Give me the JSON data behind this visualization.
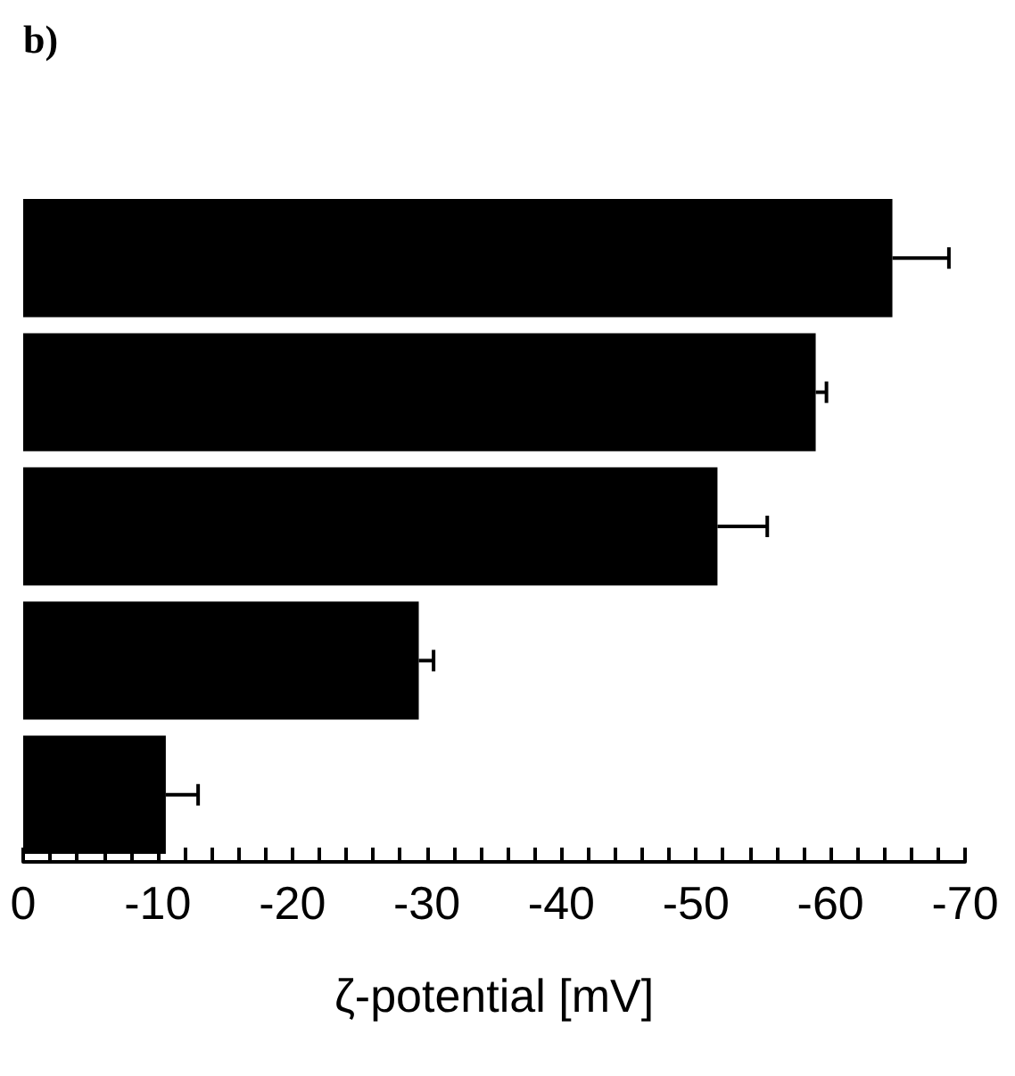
{
  "chart_data": {
    "type": "bar",
    "orientation": "horizontal",
    "title": "b)",
    "xlabel": "ζ-potential [mV]",
    "categories": [
      null,
      null,
      null,
      null,
      null
    ],
    "values": [
      -64.6,
      -58.9,
      -51.6,
      -29.4,
      -10.6
    ],
    "errors": [
      [
        -68.8,
        -64.6
      ],
      [
        -59.7,
        -58.9
      ],
      [
        -55.3,
        -51.6
      ],
      [
        -30.5,
        -29.4
      ],
      [
        -13,
        -10.6
      ]
    ],
    "color": "#000000",
    "xlim": [
      0,
      -70
    ],
    "xticks": [
      0,
      {
        "value": -2,
        "label": null
      },
      {
        "value": -4,
        "label": null
      },
      {
        "value": -6,
        "label": null
      },
      {
        "value": -8,
        "label": null
      },
      -10,
      {
        "value": -12,
        "label": null
      },
      {
        "value": -14,
        "label": null
      },
      {
        "value": -16,
        "label": null
      },
      {
        "value": -18,
        "label": null
      },
      -20,
      {
        "value": -22,
        "label": null
      },
      {
        "value": -24,
        "label": null
      },
      {
        "value": -26,
        "label": null
      },
      {
        "value": -28,
        "label": null
      },
      -30,
      {
        "value": -32,
        "label": null
      },
      {
        "value": -34,
        "label": null
      },
      {
        "value": -36,
        "label": null
      },
      {
        "value": -38,
        "label": null
      },
      -40,
      {
        "value": -42,
        "label": null
      },
      {
        "value": -44,
        "label": null
      },
      {
        "value": -46,
        "label": null
      },
      {
        "value": -48,
        "label": null
      },
      -50,
      {
        "value": -52,
        "label": null
      },
      {
        "value": -54,
        "label": null
      },
      {
        "value": -56,
        "label": null
      },
      {
        "value": -58,
        "label": null
      },
      -60,
      {
        "value": -62,
        "label": null
      },
      {
        "value": -64,
        "label": null
      },
      {
        "value": -66,
        "label": null
      },
      {
        "value": -68,
        "label": null
      },
      -70
    ]
  }
}
